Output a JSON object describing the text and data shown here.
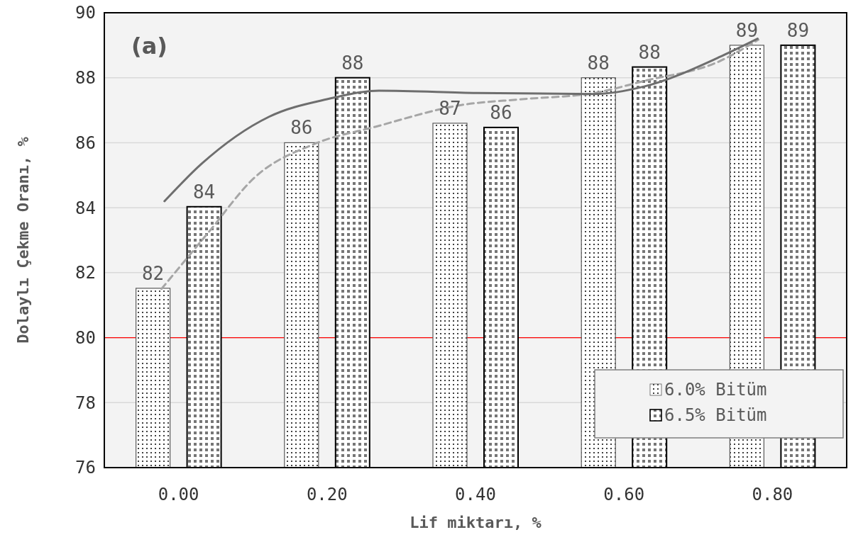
{
  "chart_data": {
    "type": "bar",
    "xlabel": "Lif miktarı, %",
    "ylabel": "Dolaylı Çekme Oranı, %",
    "x": [
      0,
      0.2,
      0.4,
      0.6,
      0.8
    ],
    "xlim": [
      -0.1,
      0.9
    ],
    "xticks": [
      {
        "value": 0,
        "label": "0.00"
      },
      {
        "value": 0.2,
        "label": "0.20"
      },
      {
        "value": 0.4,
        "label": "0.40"
      },
      {
        "value": 0.6,
        "label": "0.60"
      },
      {
        "value": 0.8,
        "label": "0.80"
      }
    ],
    "ylim": [
      76,
      90
    ],
    "yticks": [
      76,
      78,
      80,
      82,
      84,
      86,
      88,
      90
    ],
    "grid": "y",
    "legend": "bottom right",
    "series": [
      {
        "name": "6.0% Bitüm",
        "color": "#595959",
        "values": [
          81.52,
          86.0,
          86.6,
          88.0,
          89.0
        ],
        "value_labels": [
          "82",
          "86",
          "87",
          "88",
          "89"
        ]
      },
      {
        "name": "6.5% Bitüm",
        "color": "#000000",
        "values": [
          84.03,
          88.0,
          86.47,
          88.33,
          89.0
        ],
        "value_labels": [
          "84",
          "88",
          "86",
          "88",
          "89"
        ]
      },
      {
        "type": "line",
        "color": "#a6a6a6",
        "line_style": "dashed",
        "x": [
          -0.023,
          0.041,
          0.102,
          0.184,
          0.265,
          0.381,
          0.463,
          0.56,
          0.627,
          0.728,
          0.781
        ],
        "values": [
          81.5,
          83.26,
          84.92,
          85.97,
          86.49,
          87.16,
          87.34,
          87.53,
          87.9,
          88.5,
          89.17
        ]
      },
      {
        "type": "line",
        "color": "#6e6e6e",
        "line_style": "solid",
        "x": [
          -0.019,
          0.031,
          0.122,
          0.2,
          0.27,
          0.402,
          0.56,
          0.627,
          0.73,
          0.78
        ],
        "values": [
          84.2,
          85.35,
          86.8,
          87.34,
          87.6,
          87.53,
          87.5,
          87.73,
          88.65,
          89.2
        ]
      }
    ],
    "ref_lines": [
      {
        "axis": "y",
        "value": 80,
        "color": "#ff0000"
      }
    ],
    "annotations": [
      "(a)"
    ]
  }
}
